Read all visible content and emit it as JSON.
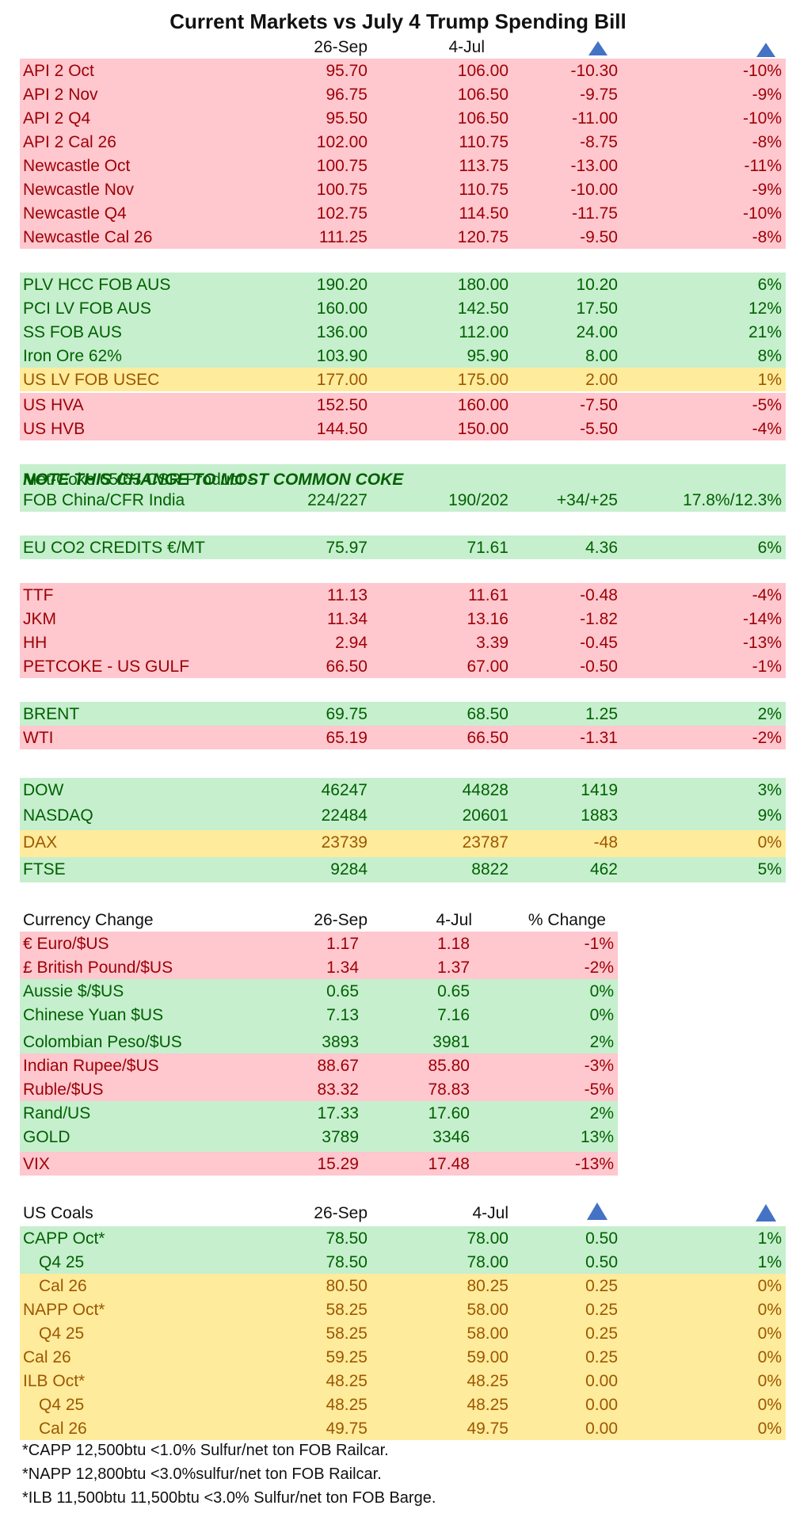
{
  "title": "Current Markets vs July 4 Trump Spending Bill",
  "header": {
    "col1": "26-Sep",
    "col2": "4-Jul"
  },
  "coal": [
    {
      "name": "API 2 Oct",
      "v1": "95.70",
      "v2": "106.00",
      "chg": "-10.30",
      "pct": "-10%"
    },
    {
      "name": "API 2 Nov",
      "v1": "96.75",
      "v2": "106.50",
      "chg": "-9.75",
      "pct": "-9%"
    },
    {
      "name": "API 2 Q4",
      "v1": "95.50",
      "v2": "106.50",
      "chg": "-11.00",
      "pct": "-10%"
    },
    {
      "name": "API 2 Cal 26",
      "v1": "102.00",
      "v2": "110.75",
      "chg": "-8.75",
      "pct": "-8%"
    },
    {
      "name": "Newcastle Oct",
      "v1": "100.75",
      "v2": "113.75",
      "chg": "-13.00",
      "pct": "-11%"
    },
    {
      "name": "Newcastle  Nov",
      "v1": "100.75",
      "v2": "110.75",
      "chg": "-10.00",
      "pct": "-9%"
    },
    {
      "name": "Newcastle Q4",
      "v1": "102.75",
      "v2": "114.50",
      "chg": "-11.75",
      "pct": "-10%"
    },
    {
      "name": "Newcastle Cal 26",
      "v1": "111.25",
      "v2": "120.75",
      "chg": "-9.50",
      "pct": "-8%"
    }
  ],
  "met": [
    {
      "name": "PLV HCC FOB AUS",
      "v1": "190.20",
      "v2": "180.00",
      "chg": "10.20",
      "pct": "6%"
    },
    {
      "name": "PCI LV FOB AUS",
      "v1": "160.00",
      "v2": "142.50",
      "chg": "17.50",
      "pct": "12%"
    },
    {
      "name": "SS FOB AUS",
      "v1": "136.00",
      "v2": "112.00",
      "chg": "24.00",
      "pct": "21%"
    },
    {
      "name": "Iron Ore 62%",
      "v1": "103.90",
      "v2": "95.90",
      "chg": "8.00",
      "pct": "8%"
    },
    {
      "name": "US LV FOB USEC",
      "v1": "177.00",
      "v2": "175.00",
      "chg": "2.00",
      "pct": "1%"
    },
    {
      "name": "US HVA",
      "v1": "152.50",
      "v2": "160.00",
      "chg": "-7.50",
      "pct": "-5%"
    },
    {
      "name": "US HVB",
      "v1": "144.50",
      "v2": "150.00",
      "chg": "-5.50",
      "pct": "-4%"
    }
  ],
  "coke": {
    "title": "Met-Coke 65/63 CSR Product - ",
    "note": "NOTE THIS CHANGE TO MOST COMMON COKE",
    "name": "FOB China/CFR India",
    "v1": "224/227",
    "v2": "190/202",
    "chg": "+34/+25",
    "pct": "17.8%/12.3%"
  },
  "co2": {
    "name": "EU CO2 CREDITS €/MT",
    "v1": "75.97",
    "v2": "71.61",
    "chg": "4.36",
    "pct": "6%"
  },
  "gas": [
    {
      "name": "TTF",
      "v1": "11.13",
      "v2": "11.61",
      "chg": "-0.48",
      "pct": "-4%"
    },
    {
      "name": "JKM",
      "v1": "11.34",
      "v2": "13.16",
      "chg": "-1.82",
      "pct": "-14%"
    },
    {
      "name": "HH",
      "v1": "2.94",
      "v2": "3.39",
      "chg": "-0.45",
      "pct": "-13%"
    },
    {
      "name": "PETCOKE - US GULF",
      "v1": "66.50",
      "v2": "67.00",
      "chg": "-0.50",
      "pct": "-1%"
    }
  ],
  "oil": [
    {
      "name": "BRENT",
      "v1": "69.75",
      "v2": "68.50",
      "chg": "1.25",
      "pct": "2%"
    },
    {
      "name": "WTI",
      "v1": "65.19",
      "v2": "66.50",
      "chg": "-1.31",
      "pct": "-2%"
    }
  ],
  "indices": [
    {
      "name": "DOW",
      "v1": "46247",
      "v2": "44828",
      "chg": "1419",
      "pct": "3%"
    },
    {
      "name": "NASDAQ",
      "v1": "22484",
      "v2": "20601",
      "chg": "1883",
      "pct": "9%"
    },
    {
      "name": "DAX",
      "v1": "23739",
      "v2": "23787",
      "chg": "-48",
      "pct": "0%"
    },
    {
      "name": "FTSE",
      "v1": "9284",
      "v2": "8822",
      "chg": "462",
      "pct": "5%"
    }
  ],
  "currency": {
    "header": {
      "name": "Currency Change",
      "col1": "26-Sep",
      "col2": "4-Jul",
      "col3": "% Change"
    },
    "rows": [
      {
        "name": "€ Euro/$US",
        "v1": "1.17",
        "v2": "1.18",
        "pct": "-1%"
      },
      {
        "name": "£ British Pound/$US",
        "v1": "1.34",
        "v2": "1.37",
        "pct": "-2%"
      },
      {
        "name": "Aussie $/$US",
        "v1": "0.65",
        "v2": "0.65",
        "pct": "0%"
      },
      {
        "name": "Chinese Yuan $US",
        "v1": "7.13",
        "v2": "7.16",
        "pct": "0%"
      },
      {
        "name": "Colombian Peso/$US",
        "v1": "3893",
        "v2": "3981",
        "pct": "2%"
      },
      {
        "name": "Indian Rupee/$US",
        "v1": "88.67",
        "v2": "85.80",
        "pct": "-3%"
      },
      {
        "name": "Ruble/$US",
        "v1": "83.32",
        "v2": "78.83",
        "pct": "-5%"
      },
      {
        "name": "Rand/US",
        "v1": "17.33",
        "v2": "17.60",
        "pct": "2%"
      },
      {
        "name": "GOLD",
        "v1": "3789",
        "v2": "3346",
        "pct": "13%"
      },
      {
        "name": "VIX",
        "v1": "15.29",
        "v2": "17.48",
        "pct": "-13%"
      }
    ]
  },
  "uscoal": {
    "header": {
      "name": "US Coals",
      "col1": "26-Sep",
      "col2": "4-Jul"
    },
    "rows": [
      {
        "name": "CAPP Oct*",
        "v1": "78.50",
        "v2": "78.00",
        "chg": "0.50",
        "pct": "1%"
      },
      {
        "name": "Q4 25",
        "v1": "78.50",
        "v2": "78.00",
        "chg": "0.50",
        "pct": "1%"
      },
      {
        "name": "Cal 26",
        "v1": "80.50",
        "v2": "80.25",
        "chg": "0.25",
        "pct": "0%"
      },
      {
        "name": "NAPP Oct*",
        "v1": "58.25",
        "v2": "58.00",
        "chg": "0.25",
        "pct": "0%"
      },
      {
        "name": "Q4 25",
        "v1": "58.25",
        "v2": "58.00",
        "chg": "0.25",
        "pct": "0%"
      },
      {
        "name": "Cal 26",
        "v1": "59.25",
        "v2": "59.00",
        "chg": "0.25",
        "pct": "0%"
      },
      {
        "name": "ILB Oct*",
        "v1": "48.25",
        "v2": "48.25",
        "chg": "0.00",
        "pct": "0%"
      },
      {
        "name": "Q4 25",
        "v1": "48.25",
        "v2": "48.25",
        "chg": "0.00",
        "pct": "0%"
      },
      {
        "name": "Cal 26",
        "v1": "49.75",
        "v2": "49.75",
        "chg": "0.00",
        "pct": "0%"
      }
    ]
  },
  "footnotes": [
    "*CAPP 12,500btu <1.0% Sulfur/net ton FOB Railcar.",
    "*NAPP 12,800btu <3.0%sulfur/net ton FOB Railcar.",
    "*ILB 11,500btu 11,500btu <3.0% Sulfur/net ton FOB Barge."
  ],
  "colors": {
    "red_bg": "#ffc7ce",
    "red_text": "#9c0006",
    "green_bg": "#c6efce",
    "green_text": "#006100",
    "yellow_bg": "#ffeb9c",
    "yellow_text": "#9c5700",
    "triangle": "#4472c4"
  }
}
